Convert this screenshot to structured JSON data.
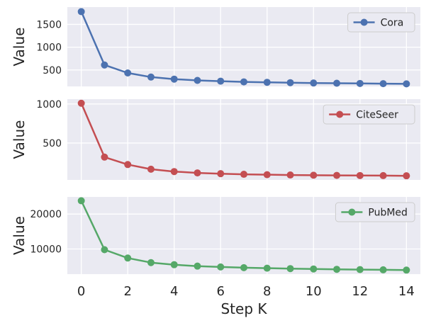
{
  "chart_data": [
    {
      "type": "line",
      "x": [
        0,
        1,
        2,
        3,
        4,
        5,
        6,
        7,
        8,
        9,
        10,
        11,
        12,
        13,
        14
      ],
      "series": [
        {
          "name": "Cora",
          "color": "#4c72b0",
          "values": [
            1780,
            610,
            435,
            345,
            300,
            272,
            255,
            240,
            230,
            222,
            215,
            210,
            205,
            200,
            196
          ]
        }
      ],
      "ylabel": "Value",
      "ylim": [
        140,
        1880
      ],
      "yticks": [
        500,
        1000,
        1500
      ],
      "ytick_labels": [
        "500",
        "1000",
        "1500"
      ],
      "legend": "upper right",
      "grid": true
    },
    {
      "type": "line",
      "x": [
        0,
        1,
        2,
        3,
        4,
        5,
        6,
        7,
        8,
        9,
        10,
        11,
        12,
        13,
        14
      ],
      "series": [
        {
          "name": "CiteSeer",
          "color": "#c44e52",
          "values": [
            1010,
            320,
            225,
            165,
            135,
            118,
            108,
            100,
            95,
            91,
            88,
            86,
            84,
            83,
            81
          ]
        }
      ],
      "ylabel": "Value",
      "ylim": [
        28,
        1062
      ],
      "yticks": [
        500,
        1000
      ],
      "ytick_labels": [
        "500",
        "1000"
      ],
      "legend": "upper right",
      "grid": true
    },
    {
      "type": "line",
      "x": [
        0,
        1,
        2,
        3,
        4,
        5,
        6,
        7,
        8,
        9,
        10,
        11,
        12,
        13,
        14
      ],
      "series": [
        {
          "name": "PubMed",
          "color": "#55a868",
          "values": [
            23800,
            9800,
            7400,
            6100,
            5500,
            5100,
            4850,
            4650,
            4500,
            4380,
            4280,
            4180,
            4100,
            4030,
            3960
          ]
        }
      ],
      "ylabel": "Value",
      "ylim": [
        2800,
        24900
      ],
      "yticks": [
        10000,
        20000
      ],
      "ytick_labels": [
        "10000",
        "20000"
      ],
      "legend": "upper right",
      "grid": true,
      "xlabel": "Step K",
      "xticks": [
        0,
        2,
        4,
        6,
        8,
        10,
        12,
        14
      ],
      "xtick_labels": [
        "0",
        "2",
        "4",
        "6",
        "8",
        "10",
        "12",
        "14"
      ]
    }
  ]
}
